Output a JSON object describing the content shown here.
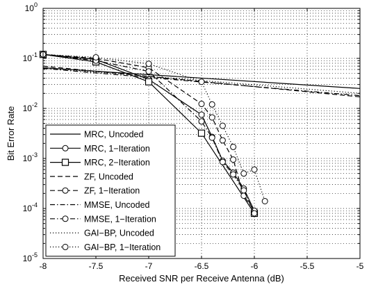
{
  "chart_data": {
    "type": "line",
    "title": "",
    "xlabel": "Received SNR per Receive Antenna (dB)",
    "ylabel": "Bit Error Rate",
    "xlim": [
      -8,
      -5
    ],
    "ylim": [
      1e-05,
      1
    ],
    "yscale": "log",
    "grid": true,
    "legend_position": "bottom-left",
    "x_ticks": [
      {
        "value": -8,
        "label": "-8"
      },
      {
        "value": -7.5,
        "label": "-7.5"
      },
      {
        "value": -7,
        "label": "-7"
      },
      {
        "value": -6.5,
        "label": "-6.5"
      },
      {
        "value": -6,
        "label": "-6"
      },
      {
        "value": -5.5,
        "label": "-5.5"
      },
      {
        "value": -5,
        "label": "-5"
      }
    ],
    "y_ticks": [
      {
        "value": 1,
        "base": "10",
        "exp": "0"
      },
      {
        "value": 0.1,
        "base": "10",
        "exp": "-1"
      },
      {
        "value": 0.01,
        "base": "10",
        "exp": "-2"
      },
      {
        "value": 0.001,
        "base": "10",
        "exp": "-3"
      },
      {
        "value": 0.0001,
        "base": "10",
        "exp": "-4"
      },
      {
        "value": 1e-05,
        "base": "10",
        "exp": "-5"
      }
    ],
    "series": [
      {
        "name": "MRC, Uncoded",
        "dash": "solid",
        "marker": "none",
        "x": [
          -8,
          -5
        ],
        "y": [
          0.065,
          0.025
        ]
      },
      {
        "name": "MRC, 1−Iteration",
        "dash": "solid",
        "marker": "circle",
        "x": [
          -8,
          -7.5,
          -7,
          -6.5,
          -6.4,
          -6.3,
          -6.2,
          -6.1,
          -6
        ],
        "y": [
          0.12,
          0.095,
          0.038,
          0.0075,
          0.0027,
          0.0009,
          0.00052,
          0.00025,
          9e-05
        ]
      },
      {
        "name": "MRC, 2−Iteration",
        "dash": "solid",
        "marker": "square",
        "x": [
          -8,
          -7.5,
          -7,
          -6.5,
          -6
        ],
        "y": [
          0.12,
          0.085,
          0.034,
          0.0032,
          8e-05
        ]
      },
      {
        "name": "ZF, Uncoded",
        "dash": "dashed",
        "marker": "none",
        "x": [
          -8,
          -5
        ],
        "y": [
          0.07,
          0.017
        ]
      },
      {
        "name": "ZF, 1−Iteration",
        "dash": "dashed",
        "marker": "circle",
        "x": [
          -8,
          -7.5,
          -7,
          -6.5,
          -6.4,
          -6.3,
          -6.2,
          -6.1,
          -6
        ],
        "y": [
          0.12,
          0.1,
          0.065,
          0.0123,
          0.0066,
          0.0023,
          0.00095,
          0.00018,
          9e-05
        ]
      },
      {
        "name": "MMSE, Uncoded",
        "dash": "dashdot",
        "marker": "none",
        "x": [
          -8,
          -5
        ],
        "y": [
          0.063,
          0.018
        ]
      },
      {
        "name": "MMSE, 1−Iteration",
        "dash": "dashdot",
        "marker": "circle",
        "x": [
          -8,
          -7.5,
          -7,
          -6.5,
          -6.4,
          -6.3,
          -6.2,
          -6.1,
          -6
        ],
        "y": [
          0.12,
          0.09,
          0.055,
          0.0055,
          0.0026,
          0.00085,
          0.00048,
          0.00023,
          8e-05
        ]
      },
      {
        "name": "GAI−BP, Uncoded",
        "dash": "dotted",
        "marker": "none",
        "x": [
          -8,
          -5
        ],
        "y": [
          0.065,
          0.02
        ]
      },
      {
        "name": "GAI−BP, 1−Iteration",
        "dash": "dotted",
        "marker": "circle",
        "x": [
          -8,
          -7.5,
          -7,
          -6.5,
          -6.4,
          -6.3,
          -6.2,
          -6.1,
          -6,
          -5.9
        ],
        "y": [
          0.12,
          0.105,
          0.078,
          0.034,
          0.012,
          0.0045,
          0.0017,
          0.0005,
          0.0006,
          0.00014
        ]
      }
    ]
  }
}
